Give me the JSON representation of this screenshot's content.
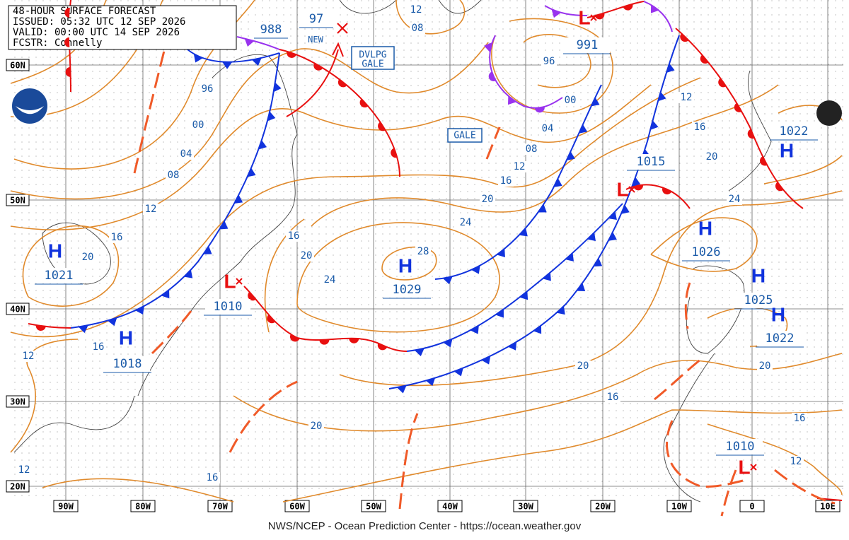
{
  "header": {
    "lines": [
      "48-HOUR SURFACE FORECAST",
      "ISSUED: 05:32 UTC 12 SEP 2026",
      "VALID:  00:00 UTC 14 SEP 2026",
      "FCSTR:  Connelly"
    ]
  },
  "footer": "NWS/NCEP - Ocean Prediction Center - https://ocean.weather.gov",
  "lat_labels": [
    "60N",
    "50N",
    "40N",
    "30N",
    "20N"
  ],
  "lon_labels": [
    "90W",
    "80W",
    "70W",
    "60W",
    "50W",
    "40W",
    "30W",
    "20W",
    "10W",
    "0",
    "10E"
  ],
  "centers": [
    {
      "type": "H",
      "pressure": "1021"
    },
    {
      "type": "H",
      "pressure": "1018"
    },
    {
      "type": "L",
      "pressure": "1010"
    },
    {
      "type": "H",
      "pressure": "1029"
    },
    {
      "type": "L",
      "pressure": "1015"
    },
    {
      "type": "L",
      "pressure": "991"
    },
    {
      "type": "H",
      "pressure": "1022"
    },
    {
      "type": "H",
      "pressure": "1026"
    },
    {
      "type": "H",
      "pressure": "1025"
    },
    {
      "type": "H",
      "pressure": "1022"
    },
    {
      "type": "L",
      "pressure": "1010"
    }
  ],
  "pressure_labels": [
    "988",
    "97"
  ],
  "annotations": {
    "new": "NEW",
    "developing_gale": [
      "DVLPG",
      "GALE"
    ],
    "gale": "GALE"
  },
  "isobar_labels": [
    "12",
    "08",
    "96",
    "00",
    "04",
    "08",
    "12",
    "16",
    "20",
    "96",
    "00",
    "04",
    "08",
    "12",
    "16",
    "20",
    "24",
    "28",
    "24",
    "20",
    "16",
    "12",
    "16",
    "20",
    "24",
    "20",
    "16",
    "20",
    "16",
    "12",
    "20",
    "16",
    "12",
    "12",
    "16"
  ]
}
